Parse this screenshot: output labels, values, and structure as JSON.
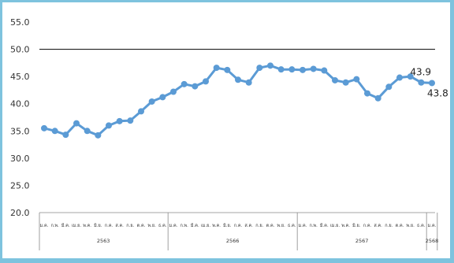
{
  "chart_data": {
    "type": "line",
    "title": "",
    "xlabel": "",
    "ylabel": "",
    "ylim": [
      20.0,
      55.0
    ],
    "yticks": [
      "20.0",
      "25.0",
      "30.0",
      "35.0",
      "40.0",
      "45.0",
      "50.0",
      "55.0"
    ],
    "reference_line": 50.0,
    "months": [
      "ม.ค.",
      "ก.พ.",
      "มี.ค.",
      "เม.ย.",
      "พ.ค.",
      "มิ.ย.",
      "ก.ค.",
      "ส.ค.",
      "ก.ย.",
      "ต.ค.",
      "พ.ย.",
      "ธ.ค."
    ],
    "years": [
      {
        "label": "2563",
        "months": 12
      },
      {
        "label": "2566",
        "months": 12
      },
      {
        "label": "2567",
        "months": 12
      },
      {
        "label": "2568",
        "months": 1
      }
    ],
    "x_categories": [
      "ม.ค.",
      "ก.พ.",
      "มี.ค.",
      "เม.ย.",
      "พ.ค.",
      "มิ.ย.",
      "ก.ค.",
      "ส.ค.",
      "ก.ย.",
      "ต.ค.",
      "พ.ย.",
      "ธ.ค.",
      "ม.ค.",
      "ก.พ.",
      "มี.ค.",
      "เม.ย.",
      "พ.ค.",
      "มิ.ย.",
      "ก.ค.",
      "ส.ค.",
      "ก.ย.",
      "ต.ค.",
      "พ.ย.",
      "ธ.ค.",
      "ม.ค.",
      "ก.พ.",
      "มี.ค.",
      "เม.ย.",
      "พ.ค.",
      "มิ.ย.",
      "ก.ค.",
      "ส.ค.",
      "ก.ย.",
      "ต.ค.",
      "พ.ย.",
      "ธ.ค.",
      "ม.ค."
    ],
    "series": [
      {
        "name": "",
        "color": "#5b9bd5",
        "values": [
          35.5,
          35.0,
          34.3,
          36.4,
          35.0,
          34.2,
          36.0,
          36.8,
          36.9,
          38.6,
          40.4,
          41.2,
          42.2,
          43.6,
          43.2,
          44.1,
          46.6,
          46.2,
          44.4,
          43.9,
          46.6,
          47.0,
          46.3,
          46.3,
          46.2,
          46.4,
          46.1,
          44.3,
          43.9,
          44.5,
          41.9,
          41.0,
          43.1,
          44.8,
          45.0,
          43.9,
          43.8
        ]
      }
    ],
    "data_labels": [
      {
        "index": 35,
        "text": "43.9"
      },
      {
        "index": 36,
        "text": "43.8"
      }
    ]
  }
}
